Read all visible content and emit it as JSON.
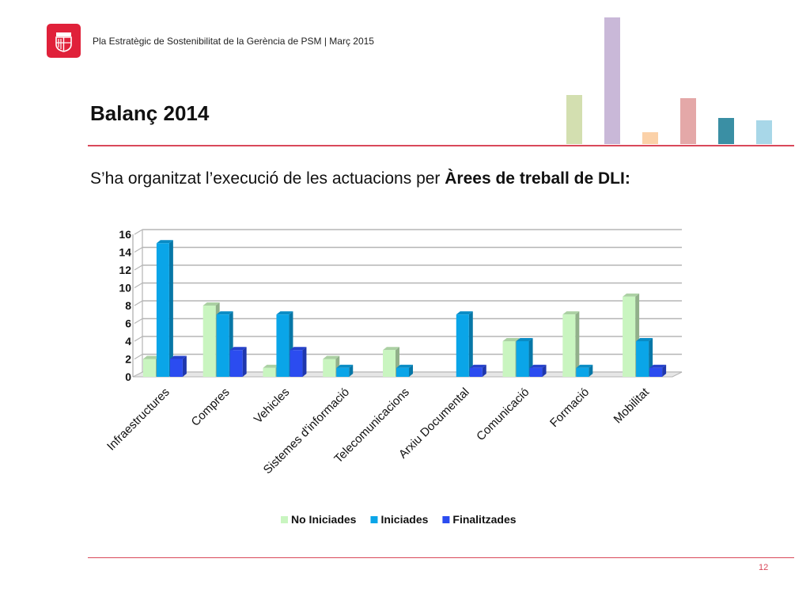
{
  "header": {
    "text": "Pla Estratègic de Sostenibilitat de la Gerència de PSM | Març 2015"
  },
  "logo": {
    "icon": "barcelona-coat-of-arms-icon",
    "color": "#e0213a"
  },
  "page": {
    "title": "Balanç 2014",
    "subtitle_prefix": "S’ha organitzat l’execució de les actuacions per ",
    "subtitle_bold": "Àrees de treball de DLI:",
    "page_number": "12",
    "accent_color": "#d9485a"
  },
  "decorative_bars": {
    "colors": [
      "#d3dfb0",
      "#c9b8d8",
      "#fbd1a8",
      "#e4a8a8",
      "#3a8fa4",
      "#a8d7e8"
    ]
  },
  "chart_data": {
    "type": "bar",
    "categories": [
      "Infraestructures",
      "Compres",
      "Vehicles",
      "Sistemes d'informació",
      "Telecomunicacions",
      "Arxiu Documental",
      "Comunicació",
      "Formació",
      "Mobilitat"
    ],
    "series": [
      {
        "name": "No Iniciades",
        "color": "#c9f5c0",
        "values": [
          2,
          8,
          1,
          2,
          3,
          0,
          4,
          7,
          9
        ]
      },
      {
        "name": "Iniciades",
        "color": "#0aa5e8",
        "values": [
          15,
          7,
          7,
          1,
          1,
          7,
          4,
          1,
          4
        ]
      },
      {
        "name": "Finalitzades",
        "color": "#2b4cf0",
        "values": [
          2,
          3,
          3,
          0,
          0,
          1,
          1,
          0,
          1
        ]
      }
    ],
    "yticks": [
      "0",
      "2",
      "4",
      "6",
      "8",
      "10",
      "12",
      "14",
      "16"
    ],
    "ylim": [
      0,
      16
    ],
    "grid": true,
    "legend": "bottom"
  }
}
